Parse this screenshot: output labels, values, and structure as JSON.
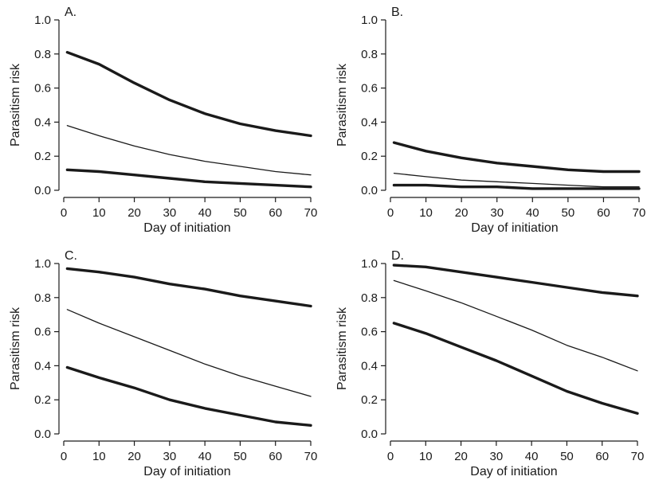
{
  "chart_data": [
    {
      "type": "line",
      "panel_label": "A.",
      "xlabel": "Day of initiation",
      "ylabel": "Parasitism risk",
      "xlim": [
        0,
        70
      ],
      "ylim": [
        0,
        1
      ],
      "x_ticks": [
        0,
        10,
        20,
        30,
        40,
        50,
        60,
        70
      ],
      "y_ticks": [
        0.0,
        0.2,
        0.4,
        0.6,
        0.8,
        1.0
      ],
      "x_tick_labels": [
        "0",
        "10",
        "20",
        "30",
        "40",
        "50",
        "60",
        "70"
      ],
      "y_tick_labels": [
        "0.0",
        "0.2",
        "0.4",
        "0.6",
        "0.8",
        "1.0"
      ],
      "x": [
        1,
        10,
        20,
        30,
        40,
        50,
        60,
        70
      ],
      "series": [
        {
          "values": [
            0.81,
            0.74,
            0.63,
            0.53,
            0.45,
            0.39,
            0.35,
            0.32
          ],
          "weight": "thick"
        },
        {
          "values": [
            0.38,
            0.32,
            0.26,
            0.21,
            0.17,
            0.14,
            0.11,
            0.09
          ],
          "weight": "thin"
        },
        {
          "values": [
            0.12,
            0.11,
            0.09,
            0.07,
            0.05,
            0.04,
            0.03,
            0.02
          ],
          "weight": "thick"
        }
      ]
    },
    {
      "type": "line",
      "panel_label": "B.",
      "xlabel": "Day of initiation",
      "ylabel": "Parasitism risk",
      "xlim": [
        0,
        70
      ],
      "ylim": [
        0,
        1
      ],
      "x_ticks": [
        0,
        10,
        20,
        30,
        40,
        50,
        60,
        70
      ],
      "y_ticks": [
        0.0,
        0.2,
        0.4,
        0.6,
        0.8,
        1.0
      ],
      "x_tick_labels": [
        "0",
        "10",
        "20",
        "30",
        "40",
        "50",
        "60",
        "70"
      ],
      "y_tick_labels": [
        "0.0",
        "0.2",
        "0.4",
        "0.6",
        "0.8",
        "1.0"
      ],
      "x": [
        1,
        10,
        20,
        30,
        40,
        50,
        60,
        70
      ],
      "series": [
        {
          "values": [
            0.28,
            0.23,
            0.19,
            0.16,
            0.14,
            0.12,
            0.11,
            0.11
          ],
          "weight": "thick"
        },
        {
          "values": [
            0.1,
            0.08,
            0.06,
            0.05,
            0.04,
            0.03,
            0.02,
            0.02
          ],
          "weight": "thin"
        },
        {
          "values": [
            0.03,
            0.03,
            0.02,
            0.02,
            0.01,
            0.01,
            0.01,
            0.01
          ],
          "weight": "thick"
        }
      ]
    },
    {
      "type": "line",
      "panel_label": "C.",
      "xlabel": "Day of initiation",
      "ylabel": "Parasitism risk",
      "xlim": [
        0,
        70
      ],
      "ylim": [
        0,
        1
      ],
      "x_ticks": [
        0,
        10,
        20,
        30,
        40,
        50,
        60,
        70
      ],
      "y_ticks": [
        0.0,
        0.2,
        0.4,
        0.6,
        0.8,
        1.0
      ],
      "x_tick_labels": [
        "0",
        "10",
        "20",
        "30",
        "40",
        "50",
        "60",
        "70"
      ],
      "y_tick_labels": [
        "0.0",
        "0.2",
        "0.4",
        "0.6",
        "0.8",
        "1.0"
      ],
      "x": [
        1,
        10,
        20,
        30,
        40,
        50,
        60,
        70
      ],
      "series": [
        {
          "values": [
            0.97,
            0.95,
            0.92,
            0.88,
            0.85,
            0.81,
            0.78,
            0.75
          ],
          "weight": "thick"
        },
        {
          "values": [
            0.73,
            0.65,
            0.57,
            0.49,
            0.41,
            0.34,
            0.28,
            0.22
          ],
          "weight": "thin"
        },
        {
          "values": [
            0.39,
            0.33,
            0.27,
            0.2,
            0.15,
            0.11,
            0.07,
            0.05
          ],
          "weight": "thick"
        }
      ]
    },
    {
      "type": "line",
      "panel_label": "D.",
      "xlabel": "Day of initiation",
      "ylabel": "Parasitism risk",
      "xlim": [
        0,
        70
      ],
      "ylim": [
        0,
        1
      ],
      "x_ticks": [
        0,
        10,
        20,
        30,
        40,
        50,
        60,
        70
      ],
      "y_ticks": [
        0.0,
        0.2,
        0.4,
        0.6,
        0.8,
        1.0
      ],
      "x_tick_labels": [
        "0",
        "10",
        "20",
        "30",
        "40",
        "50",
        "60",
        "70"
      ],
      "y_tick_labels": [
        "0.0",
        "0.2",
        "0.4",
        "0.6",
        "0.8",
        "1.0"
      ],
      "x": [
        1,
        10,
        20,
        30,
        40,
        50,
        60,
        70
      ],
      "series": [
        {
          "values": [
            0.99,
            0.98,
            0.95,
            0.92,
            0.89,
            0.86,
            0.83,
            0.81
          ],
          "weight": "thick"
        },
        {
          "values": [
            0.9,
            0.84,
            0.77,
            0.69,
            0.61,
            0.52,
            0.45,
            0.37
          ],
          "weight": "thin"
        },
        {
          "values": [
            0.65,
            0.59,
            0.51,
            0.43,
            0.34,
            0.25,
            0.18,
            0.12
          ],
          "weight": "thick"
        }
      ]
    }
  ]
}
